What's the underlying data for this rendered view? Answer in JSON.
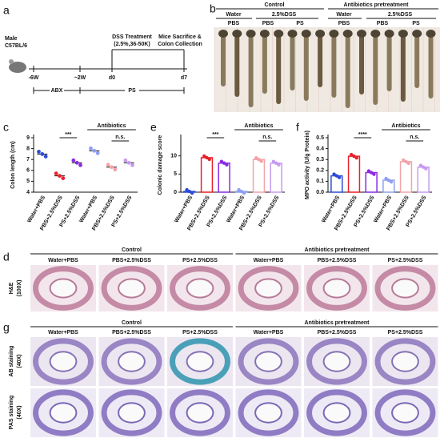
{
  "panel_labels": [
    "a",
    "b",
    "c",
    "d",
    "e",
    "f",
    "g"
  ],
  "timeline": {
    "strain": [
      "Male",
      "C57BL/6"
    ],
    "times": [
      "-6W",
      "~2W",
      "d0",
      "d7"
    ],
    "periods": [
      "ABX",
      "PS"
    ],
    "dss": [
      "DSS Treatment",
      "(2.5%,36-50K)"
    ],
    "end": [
      "Mice Sacrifice &",
      "Colon Collection"
    ]
  },
  "photo": {
    "groups": [
      "Control",
      "Antibiotics pretreatment"
    ],
    "treatments": [
      "Water",
      "2.5%DSS",
      "Water",
      "2.5%DSS"
    ],
    "agents": [
      "PBS",
      "PBS",
      "PS",
      "PBS",
      "PBS",
      "PS"
    ]
  },
  "chart_data": [
    {
      "type": "dot",
      "y_label": "Colon length (cm)",
      "categories": [
        "Water+PBS",
        "PBS+2.5%DSS",
        "PS+2.5%DSS",
        "Water+PBS",
        "PBS+2.5%DSS",
        "PS+2.5%DSS"
      ],
      "values": [
        7.5,
        5.5,
        6.7,
        7.8,
        6.3,
        6.7
      ],
      "colors": [
        "#2d4bd8",
        "#e8202a",
        "#8a2be2",
        "#8f9ff0",
        "#f3a3a8",
        "#c79af0"
      ],
      "ylim": [
        4,
        9
      ],
      "yticks": [
        4,
        5,
        6,
        7,
        8,
        9
      ],
      "annotations": [
        "***",
        "Antibiotics",
        "n.s."
      ]
    },
    {
      "type": "bar",
      "y_label": "Colonic damage score",
      "categories": [
        "Water+PBS",
        "PBS+2.5%DSS",
        "PS+2.5%DSS",
        "Water+PBS",
        "PBS+2.5%DSS",
        "PS+2.5%DSS"
      ],
      "values": [
        0.2,
        9.5,
        8,
        0.2,
        9,
        8
      ],
      "colors": [
        "#2d4bd8",
        "#e8202a",
        "#8a2be2",
        "#8f9ff0",
        "#f3a3a8",
        "#c79af0"
      ],
      "ylim": [
        0,
        15
      ],
      "yticks": [
        0,
        5,
        10
      ],
      "annotations": [
        "***",
        "Antibiotics",
        "n.s."
      ]
    },
    {
      "type": "bar",
      "y_label": "MPO activity (U/g Protein)",
      "categories": [
        "Water+PBS",
        "PBS+2.5%DSS",
        "PS+2.5%DSS",
        "Water+PBS",
        "PBS+2.5%DSS",
        "PS+2.5%DSS"
      ],
      "values": [
        0.15,
        0.33,
        0.18,
        0.11,
        0.28,
        0.23
      ],
      "colors": [
        "#2d4bd8",
        "#e8202a",
        "#8a2be2",
        "#8f9ff0",
        "#f3a3a8",
        "#c79af0"
      ],
      "ylim": [
        0,
        0.5
      ],
      "yticks": [
        {
          "value": 0,
          "label": "0.0"
        },
        0.1,
        0.2,
        0.3,
        0.4,
        0.5
      ],
      "annotations": [
        "****",
        "Antibiotics",
        "n.s."
      ]
    }
  ],
  "histology": {
    "groups": [
      "Control",
      "Antibiotics pretreatment"
    ],
    "columns": [
      "Water+PBS",
      "PBS+2.5%DSS",
      "PS+2.5%DSS",
      "Water+PBS",
      "PBS+2.5%DSS",
      "PS+2.5%DSS"
    ],
    "row": [
      "H&E",
      "(100X)"
    ]
  },
  "staining": {
    "groups": [
      "Control",
      "Antibiotics pretreatment"
    ],
    "columns": [
      "Water+PBS",
      "PBS+2.5%DSS",
      "PS+2.5%DSS",
      "Water+PBS",
      "PBS+2.5%DSS",
      "PS+2.5%DSS"
    ],
    "rows": [
      [
        "AB staining",
        "(40X)"
      ],
      [
        "PAS staining",
        "(40X)"
      ]
    ]
  }
}
